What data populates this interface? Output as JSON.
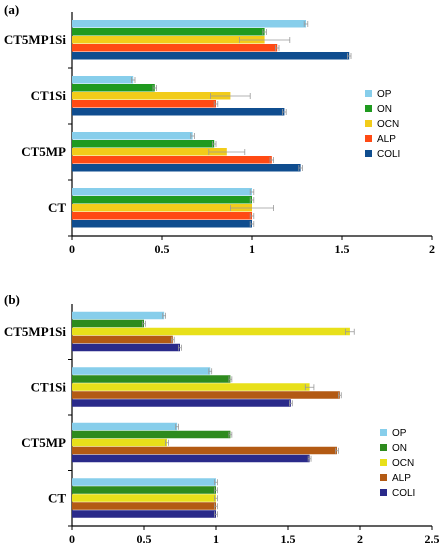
{
  "chart_data": [
    {
      "type": "bar",
      "orientation": "horizontal",
      "panel_label": "(a)",
      "categories": [
        "CT",
        "CT5MP",
        "CT1Si",
        "CT5MP1Si"
      ],
      "xlim": [
        0,
        2
      ],
      "xticks": [
        "0",
        "0.5",
        "1",
        "1.5",
        "2"
      ],
      "legend_position": "right",
      "series": [
        {
          "name": "OP",
          "color": "#87ceeb",
          "values": [
            1.0,
            0.67,
            0.34,
            1.3
          ],
          "errors": [
            0.01,
            0.01,
            0.01,
            0.01
          ]
        },
        {
          "name": "ON",
          "color": "#1f9a1f",
          "values": [
            1.0,
            0.79,
            0.46,
            1.07
          ],
          "errors": [
            0.01,
            0.01,
            0.01,
            0.01
          ]
        },
        {
          "name": "OCN",
          "color": "#f2cc1a",
          "values": [
            1.0,
            0.86,
            0.88,
            1.07
          ],
          "errors": [
            0.12,
            0.1,
            0.11,
            0.14
          ]
        },
        {
          "name": "ALP",
          "color": "#ff4a14",
          "values": [
            1.0,
            1.11,
            0.8,
            1.14
          ],
          "errors": [
            0.01,
            0.01,
            0.01,
            0.01
          ]
        },
        {
          "name": "COLI",
          "color": "#0f4d8f",
          "values": [
            1.0,
            1.27,
            1.18,
            1.54
          ],
          "errors": [
            0.01,
            0.01,
            0.01,
            0.01
          ]
        }
      ]
    },
    {
      "type": "bar",
      "orientation": "horizontal",
      "panel_label": "(b)",
      "categories": [
        "CT",
        "CT5MP",
        "CT1Si",
        "CT5MP1Si"
      ],
      "xlim": [
        0,
        2.5
      ],
      "xticks": [
        "0",
        "0.5",
        "1",
        "1.5",
        "2",
        "2.5"
      ],
      "legend_position": "right",
      "series": [
        {
          "name": "OP",
          "color": "#87ceeb",
          "values": [
            1.0,
            0.73,
            0.96,
            0.64
          ],
          "errors": [
            0.01,
            0.01,
            0.01,
            0.01
          ]
        },
        {
          "name": "ON",
          "color": "#2e8b1e",
          "values": [
            1.0,
            1.1,
            1.1,
            0.5
          ],
          "errors": [
            0.01,
            0.01,
            0.01,
            0.01
          ]
        },
        {
          "name": "OCN",
          "color": "#e8e01a",
          "values": [
            1.0,
            0.66,
            1.65,
            1.93
          ],
          "errors": [
            0.01,
            0.01,
            0.03,
            0.03
          ]
        },
        {
          "name": "ALP",
          "color": "#b35a14",
          "values": [
            1.0,
            1.84,
            1.86,
            0.7
          ],
          "errors": [
            0.01,
            0.01,
            0.01,
            0.01
          ]
        },
        {
          "name": "COLI",
          "color": "#2a2a8a",
          "values": [
            1.0,
            1.65,
            1.52,
            0.75
          ],
          "errors": [
            0.01,
            0.01,
            0.01,
            0.01
          ]
        }
      ]
    }
  ]
}
